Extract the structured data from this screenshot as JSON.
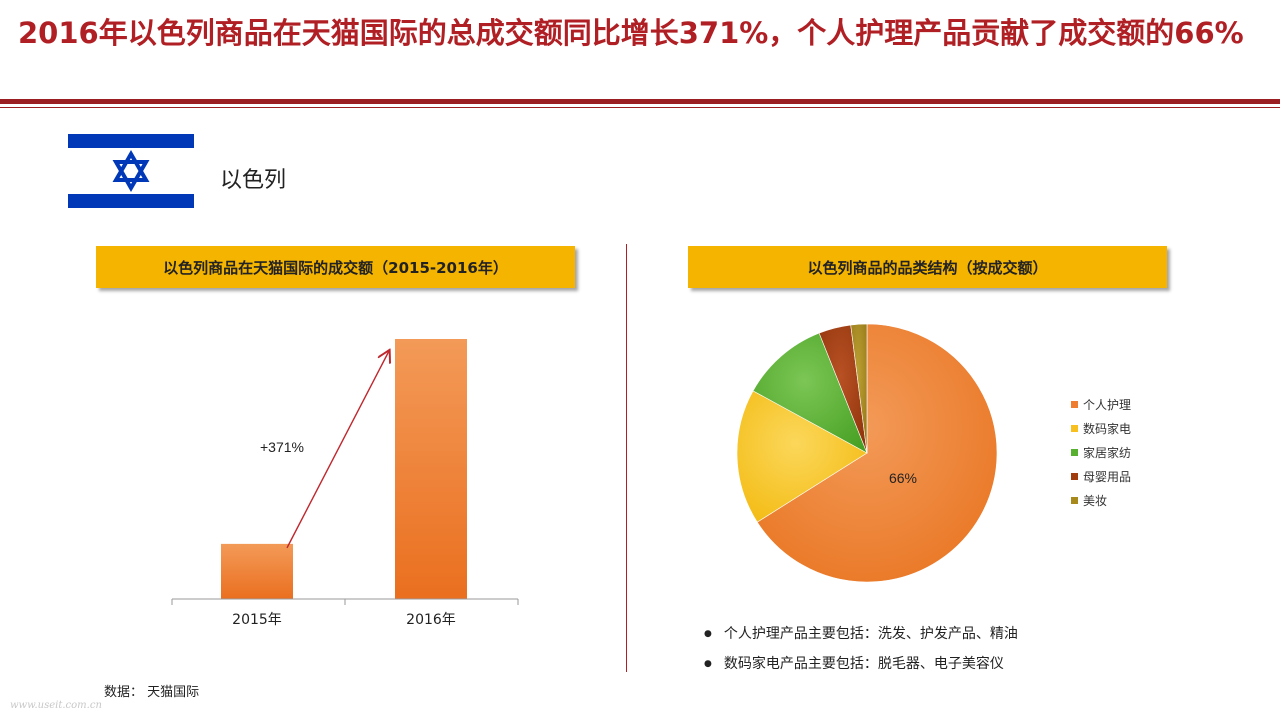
{
  "title": "2016年以色列商品在天猫国际的总成交额同比增长371%，个人护理产品贡献了成交额的66%",
  "country": "以色列",
  "colors": {
    "title_red": "#b01f24",
    "banner_yellow": "#f4b400",
    "flag_blue": "#0038b8",
    "bar_orange": "#ef7d2f",
    "arrow_red": "#c0272d"
  },
  "chart_data": [
    {
      "type": "bar",
      "title": "以色列商品在天猫国际的成交额（2015-2016年）",
      "categories": [
        "2015年",
        "2016年"
      ],
      "values": [
        21.2,
        100
      ],
      "ylim": [
        0,
        100
      ],
      "annotation": "+371%",
      "grid": false
    },
    {
      "type": "pie",
      "title": "以色列商品的品类结构（按成交额）",
      "labels": [
        "个人护理",
        "数码家电",
        "家居家纺",
        "母婴用品",
        "美妆"
      ],
      "values": [
        66,
        17,
        11,
        4,
        2
      ],
      "colors": [
        "#ef7d2f",
        "#f7c01e",
        "#58b030",
        "#a13c0e",
        "#a88a1c"
      ],
      "data_label": "66%",
      "legend_position": "right"
    }
  ],
  "bullets": [
    "个人护理产品主要包括：洗发、护发产品、精油",
    "数码家电产品主要包括：脱毛器、电子美容仪"
  ],
  "source": "数据：  天猫国际",
  "watermark": "www.useit.com.cn"
}
